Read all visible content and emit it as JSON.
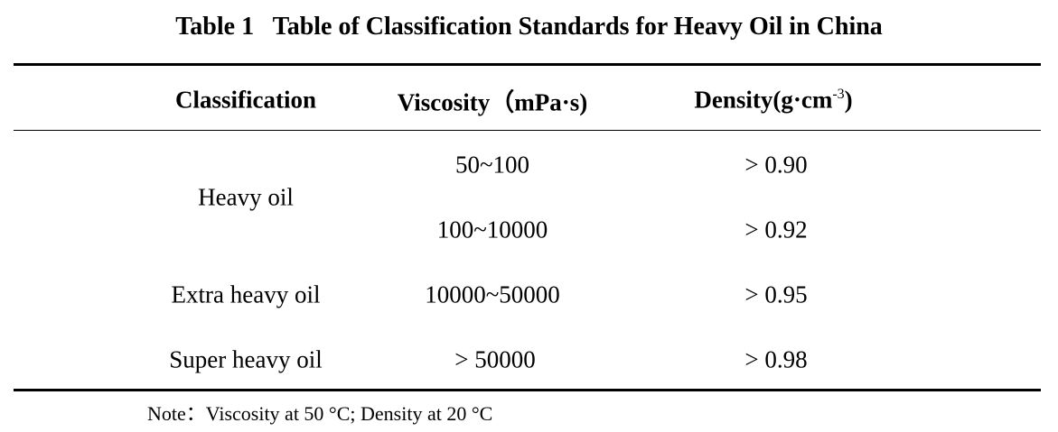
{
  "table": {
    "title": "Table 1   Table of Classification Standards for Heavy Oil in China",
    "headers": {
      "classification": "Classification",
      "viscosity": "Viscosity（mPa·s)",
      "density_main": "Density(g·cm",
      "density_sup": "-3",
      "density_close": ")"
    },
    "rows": [
      {
        "classification": "Heavy oil",
        "viscosity": "50~100",
        "density": "> 0.90"
      },
      {
        "classification": "",
        "viscosity": "100~10000",
        "density": "> 0.92"
      },
      {
        "classification": "Extra heavy oil",
        "viscosity": "10000~50000",
        "density": "> 0.95"
      },
      {
        "classification": "Super heavy oil",
        "viscosity": "> 50000",
        "density": "> 0.98"
      }
    ],
    "note": "Note：Viscosity at 50 °C; Density at 20 °C"
  }
}
